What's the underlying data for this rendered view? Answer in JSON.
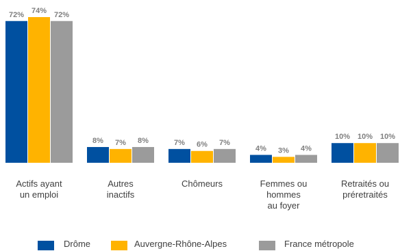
{
  "chart_data": {
    "type": "bar",
    "categories": [
      [
        "Actifs ayant",
        "un emploi"
      ],
      [
        "Autres",
        "inactifs"
      ],
      [
        "Chômeurs"
      ],
      [
        "Femmes ou",
        "hommes",
        "au foyer"
      ],
      [
        "Retraités ou",
        "préretraités"
      ]
    ],
    "series": [
      {
        "name": "Drôme",
        "color": "#0050a0",
        "values": [
          72,
          8,
          7,
          4,
          10
        ],
        "labels": [
          "72%",
          "8%",
          "7%",
          "4%",
          "10%"
        ]
      },
      {
        "name": "Auvergne-Rhône-Alpes",
        "color": "#ffb300",
        "values": [
          74,
          7,
          6,
          3,
          10
        ],
        "labels": [
          "74%",
          "7%",
          "6%",
          "3%",
          "10%"
        ]
      },
      {
        "name": "France métropole",
        "color": "#9b9b9b",
        "values": [
          72,
          8,
          7,
          4,
          10
        ],
        "labels": [
          "72%",
          "8%",
          "7%",
          "4%",
          "10%"
        ]
      }
    ],
    "unit": "%",
    "ylim": [
      0,
      74
    ],
    "legend_position": "bottom",
    "grid": false
  }
}
